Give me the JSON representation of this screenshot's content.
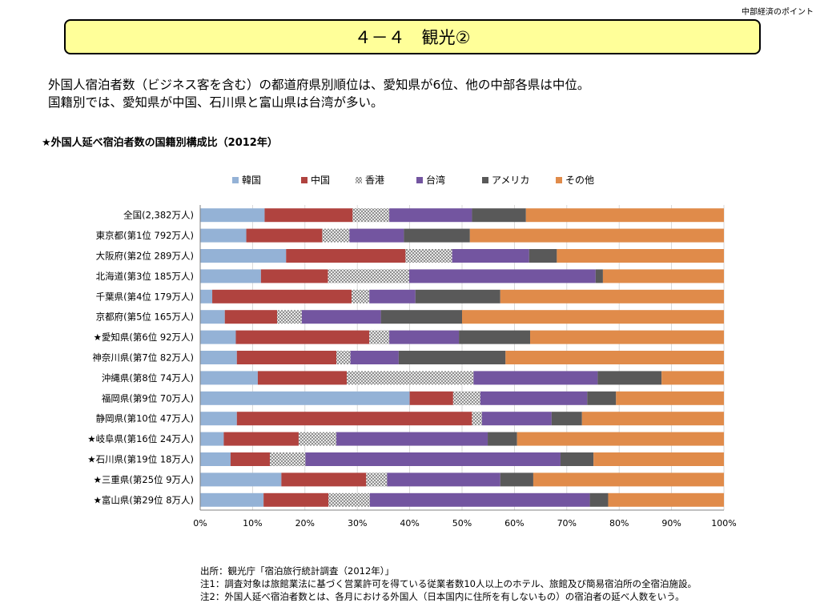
{
  "header": {
    "corner_label": "中部経済のポイント",
    "title": "４－４　観光②"
  },
  "summary": {
    "line1": "外国人宿泊者数（ビジネス客を含む）の都道府県別順位は、愛知県が6位、他の中部各県は中位。",
    "line2": "国籍別では、愛知県が中国、石川県と富山県は台湾が多い。"
  },
  "chart_title": "★外国人延べ宿泊者数の国籍別構成比（2012年）",
  "chart_data": {
    "type": "bar",
    "orientation": "horizontal",
    "stacked": "percent",
    "categories": [
      "全国(2,382万人)",
      "東京都(第1位 792万人)",
      "大阪府(第2位 289万人)",
      "北海道(第3位 185万人)",
      "千葉県(第4位 179万人)",
      "京都府(第5位 165万人)",
      "★愛知県(第6位 92万人)",
      "神奈川県(第7位 82万人)",
      "沖縄県(第8位 74万人)",
      "福岡県(第9位 70万人)",
      "静岡県(第10位 47万人)",
      "★岐阜県(第16位 24万人)",
      "★石川県(第19位 18万人)",
      "★三重県(第25位 9万人)",
      "★富山県(第29位 8万人)"
    ],
    "series": [
      {
        "name": "韓国",
        "color": "#94b2d6",
        "values": [
          12.3,
          8.8,
          16.4,
          11.6,
          2.3,
          4.7,
          6.8,
          7.0,
          11.0,
          40.0,
          7.0,
          4.5,
          5.8,
          15.5,
          12.1
        ]
      },
      {
        "name": "中国",
        "color": "#b0433f",
        "values": [
          16.8,
          14.5,
          22.8,
          12.8,
          26.6,
          10.0,
          25.5,
          19.0,
          17.0,
          8.3,
          44.9,
          14.3,
          7.5,
          16.2,
          12.4
        ]
      },
      {
        "name": "香港",
        "color": "#d9d9d9",
        "pattern": true,
        "values": [
          7.0,
          5.2,
          8.9,
          15.5,
          3.4,
          4.7,
          3.8,
          2.7,
          24.2,
          5.2,
          1.9,
          7.2,
          6.8,
          4.0,
          7.9
        ]
      },
      {
        "name": "台湾",
        "color": "#7355a0",
        "values": [
          15.8,
          10.4,
          14.7,
          35.6,
          8.8,
          15.1,
          13.3,
          9.2,
          23.7,
          20.4,
          13.3,
          28.9,
          48.7,
          21.6,
          42.0
        ]
      },
      {
        "name": "アメリカ",
        "color": "#595959",
        "values": [
          10.3,
          12.6,
          5.3,
          1.4,
          16.2,
          15.5,
          13.6,
          20.4,
          12.2,
          5.5,
          5.8,
          5.6,
          6.3,
          6.3,
          3.5
        ]
      },
      {
        "name": "その他",
        "color": "#e08b4a",
        "values": [
          37.8,
          48.5,
          31.9,
          23.1,
          42.7,
          50.0,
          37.0,
          41.7,
          11.9,
          20.6,
          27.1,
          39.5,
          24.9,
          36.4,
          22.1
        ]
      }
    ],
    "x_ticks": [
      "0%",
      "10%",
      "20%",
      "30%",
      "40%",
      "50%",
      "60%",
      "70%",
      "80%",
      "90%",
      "100%"
    ],
    "xlim": [
      0,
      100
    ],
    "legend_position": "top"
  },
  "notes": {
    "source": "出所：観光庁「宿泊旅行統計調査（2012年）」",
    "note1": "注1：調査対象は旅館業法に基づく営業許可を得ている従業者数10人以上のホテル、旅館及び簡易宿泊所の全宿泊施設。",
    "note2": "注2：外国人延べ宿泊者数とは、各月における外国人（日本国内に住所を有しないもの）の宿泊者の延べ人数をいう。"
  }
}
